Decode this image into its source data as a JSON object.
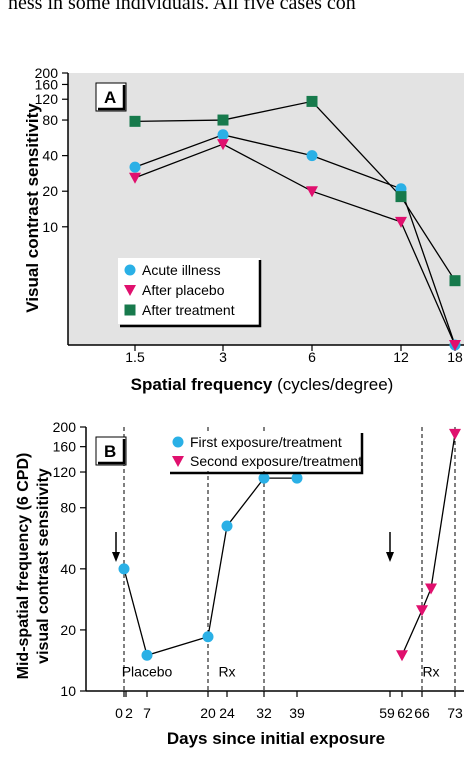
{
  "page_header_text": "ness in some individuals. All five cases con",
  "chart_data": [
    {
      "panel_label": "A",
      "type": "line",
      "xlabel_bold": "Spatial frequency",
      "xlabel_unit": " (cycles/degree)",
      "ylabel": "Visual contrast sensitivity",
      "x_ticks": [
        "1.5",
        "3",
        "6",
        "12",
        "18"
      ],
      "y_ticks": [
        200,
        160,
        120,
        80,
        40,
        20,
        10
      ],
      "y_scale": "log",
      "ylim": [
        1,
        200
      ],
      "grid": false,
      "legend_position": "bottom-center",
      "series": [
        {
          "name": "Acute illness",
          "marker": "circle",
          "color": "#2ab0e6",
          "values": [
            32,
            60,
            40,
            21,
            1
          ]
        },
        {
          "name": "After placebo",
          "marker": "triangle",
          "color": "#e0106e",
          "values": [
            26,
            50,
            20,
            11,
            1
          ]
        },
        {
          "name": "After treatment",
          "marker": "square",
          "color": "#177a4c",
          "values": [
            78,
            80,
            115,
            18,
            3.5
          ]
        }
      ]
    },
    {
      "panel_label": "B",
      "type": "line",
      "xlabel": "Days since initial exposure",
      "ylabel_line1": "Mid-spatial frequency (6 CPD)",
      "ylabel_line2": "visual contrast sensitivity",
      "x_ticks": [
        "0",
        "2",
        "7",
        "20",
        "24",
        "32",
        "39",
        "59",
        "62",
        "66",
        "73"
      ],
      "x_tick_values": [
        0,
        2,
        7,
        20,
        24,
        32,
        39,
        59,
        62,
        66,
        73
      ],
      "y_ticks": [
        200,
        160,
        120,
        80,
        40,
        20,
        10
      ],
      "y_scale": "log",
      "ylim": [
        10,
        200
      ],
      "grid": false,
      "legend_position": "top-center",
      "series": [
        {
          "name": "First exposure/treatment",
          "marker": "circle",
          "color": "#2ab0e6",
          "points": [
            [
              0,
              40
            ],
            [
              7,
              15
            ],
            [
              20,
              18.5
            ],
            [
              24,
              65
            ],
            [
              32,
              112
            ],
            [
              39,
              112
            ]
          ]
        },
        {
          "name": "Second exposure/treatment",
          "marker": "triangle",
          "color": "#e0106e",
          "points": [
            [
              62,
              15
            ],
            [
              66,
              25
            ],
            [
              68,
              32
            ],
            [
              73,
              185
            ]
          ]
        }
      ],
      "vertical_dashed_lines_at": [
        0,
        20,
        32,
        66,
        73
      ],
      "arrows_at": [
        -1,
        59
      ],
      "annotations": [
        {
          "text": "Placebo",
          "x": 7,
          "y": 12.5
        },
        {
          "text": "Rx",
          "x": 24,
          "y": 12.5
        },
        {
          "text": "Rx",
          "x": 68,
          "y": 12.5
        }
      ]
    }
  ]
}
